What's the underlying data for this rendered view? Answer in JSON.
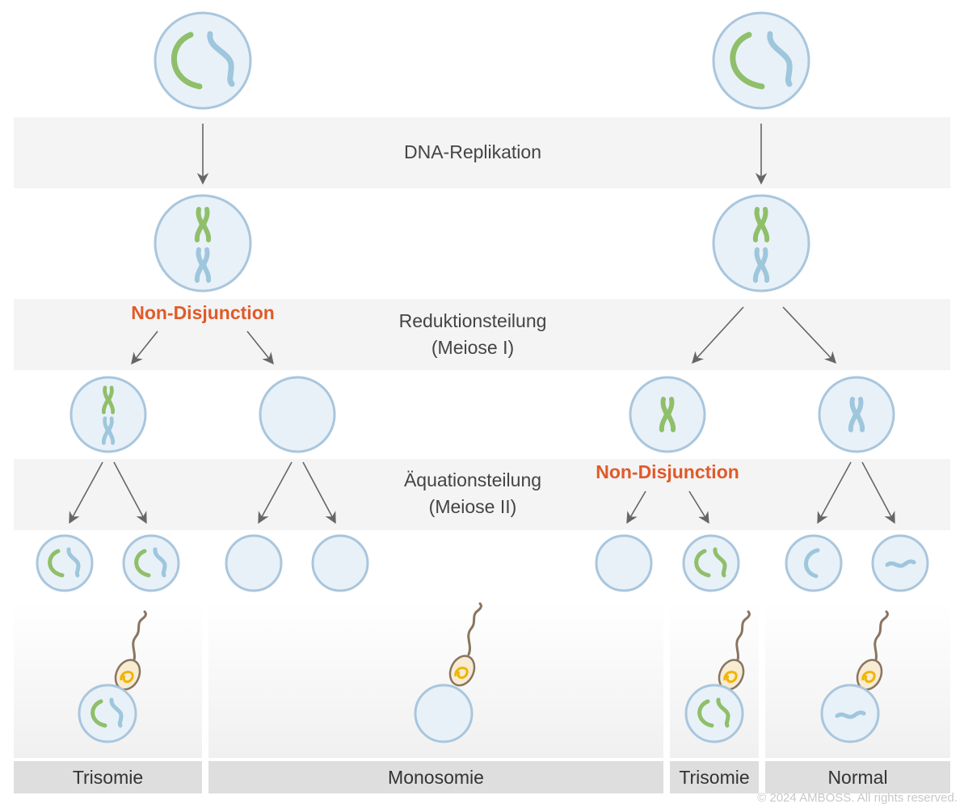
{
  "colors": {
    "chromosome_green": "#8fbf6a",
    "chromosome_blue": "#9ec6dc",
    "cell_fill": "#e8f1f8",
    "cell_stroke": "#a9c6dd",
    "accent_nondisjunction": "#e05a2a",
    "sperm_body": "#f7ecd2",
    "sperm_dna": "#f0b400",
    "sperm_tail": "#8a7560"
  },
  "stages": {
    "replication": "DNA-Replikation",
    "meiosis1_line1": "Reduktionsteilung",
    "meiosis1_line2": "(Meiose I)",
    "meiosis2_line1": "Äquationsteilung",
    "meiosis2_line2": "(Meiose II)"
  },
  "nondisjunction": {
    "left": "Non-Disjunction",
    "right": "Non-Disjunction"
  },
  "outcomes": [
    "Trisomie",
    "Monosomie",
    "Trisomie",
    "Normal"
  ],
  "copyright": "© 2024 AMBOSS. All rights reserved."
}
